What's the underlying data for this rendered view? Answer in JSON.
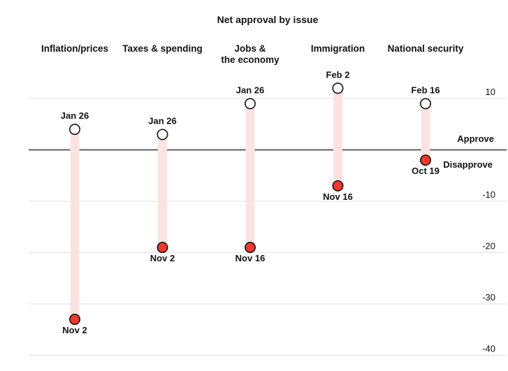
{
  "chart_data": {
    "type": "dumbbell",
    "title": "Net approval by issue",
    "categories": [
      "Inflation/prices",
      "Taxes & spending",
      "Jobs &\nthe economy",
      "Immigration",
      "National security"
    ],
    "columns": [
      {
        "category": "Inflation/prices",
        "white_dot": {
          "date": "Jan 26",
          "value": 4
        },
        "red_dot": {
          "date": "Nov 2",
          "value": -33
        }
      },
      {
        "category": "Taxes & spending",
        "white_dot": {
          "date": "Jan 26",
          "value": 3
        },
        "red_dot": {
          "date": "Nov 2",
          "value": -19
        }
      },
      {
        "category": "Jobs &\nthe economy",
        "white_dot": {
          "date": "Jan 26",
          "value": 9
        },
        "red_dot": {
          "date": "Nov 16",
          "value": -19
        }
      },
      {
        "category": "Immigration",
        "white_dot": {
          "date": "Feb 2",
          "value": 12
        },
        "red_dot": {
          "date": "Nov 16",
          "value": -7
        }
      },
      {
        "category": "National security",
        "white_dot": {
          "date": "Feb 16",
          "value": 9
        },
        "red_dot": {
          "date": "Oct 19",
          "value": -2
        }
      }
    ],
    "axis": {
      "ticks": [
        10,
        -10,
        -20,
        -30,
        -40
      ],
      "ylim": [
        -43,
        14
      ],
      "zero_value": 0,
      "approve_label": "Approve",
      "disapprove_label": "Disapprove",
      "grid": true,
      "tick_side": "right"
    },
    "colors": {
      "red": "#ee3a2d",
      "band": "#fbe3e1",
      "gridline": "#e2e2e2",
      "zero_line": "#5f5f5f",
      "white_dot": "#ffffff",
      "dot_stroke": "#121212",
      "text": "#121212"
    }
  }
}
